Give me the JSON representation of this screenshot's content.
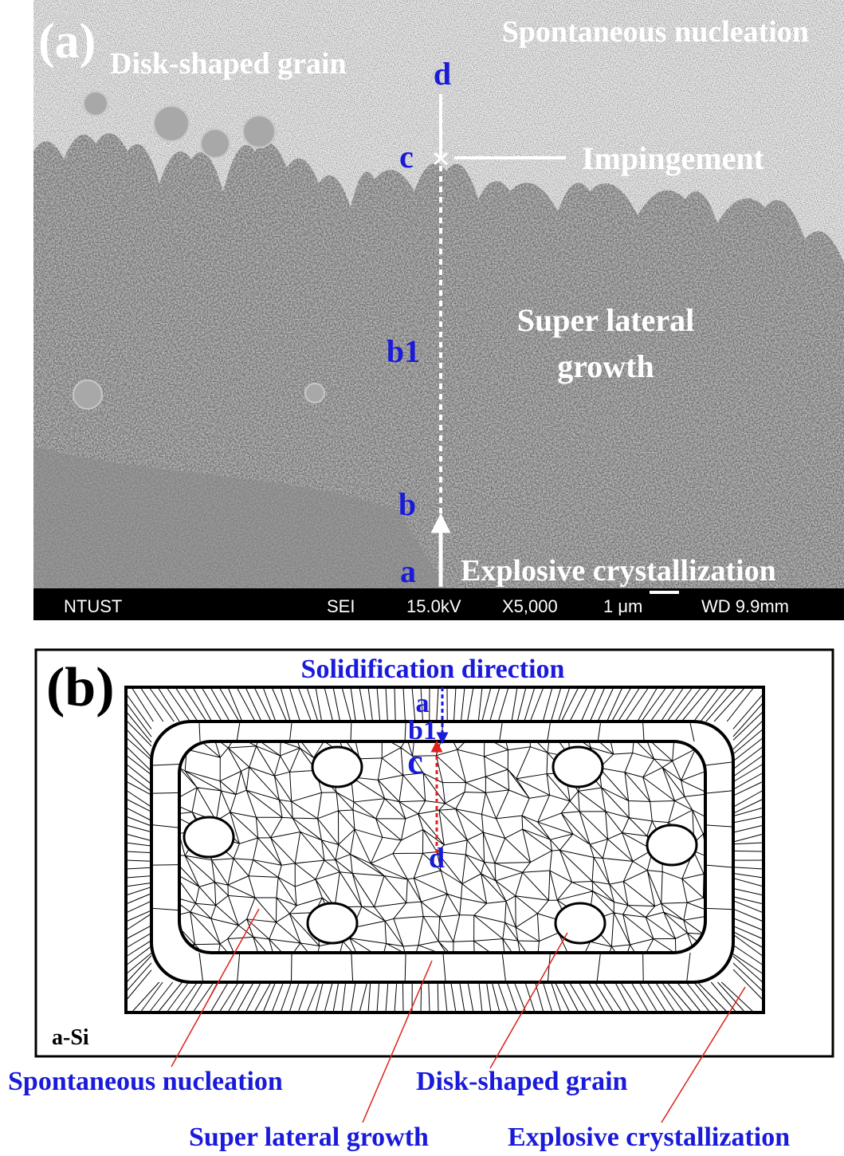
{
  "panel_a": {
    "label": "(a)",
    "annotations": {
      "spontaneous_nucleation": "Spontaneous nucleation",
      "disk_shaped_grain": "Disk-shaped grain",
      "impingement": "Impingement",
      "super_lateral_growth": [
        "Super lateral",
        "growth"
      ],
      "explosive_crystallization": "Explosive crystallization"
    },
    "points": {
      "d": "d",
      "c": "c",
      "b1": "b1",
      "b": "b",
      "a": "a"
    },
    "info_bar": {
      "institution": "NTUST",
      "mode": "SEI",
      "voltage": "15.0kV",
      "magnification": "X5,000",
      "scale": "1 μm",
      "working_distance": "WD 9.9mm"
    }
  },
  "panel_b": {
    "label": "(b)",
    "direction": "Solidification direction",
    "points": {
      "a": "a",
      "b1": "b1",
      "c": "c",
      "d": "d"
    },
    "substrate": "a-Si",
    "callouts": {
      "spontaneous_nucleation": "Spontaneous nucleation",
      "disk_shaped_grain": "Disk-shaped grain",
      "super_lateral_growth": "Super lateral growth",
      "explosive_crystallization": "Explosive crystallization"
    }
  }
}
